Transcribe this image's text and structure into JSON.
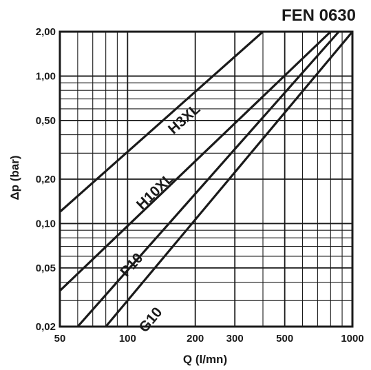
{
  "chart_data": {
    "type": "line",
    "title": "FEN 0630",
    "xlabel": "Q (l/mn)",
    "ylabel": "Δp (bar)",
    "x_scale": "log",
    "y_scale": "log",
    "xlim": [
      50,
      1000
    ],
    "ylim": [
      0.02,
      2.0
    ],
    "x_ticks": [
      50,
      100,
      200,
      300,
      500,
      1000
    ],
    "x_tick_labels": [
      "50",
      "100",
      "200",
      "300",
      "500",
      "1000"
    ],
    "y_ticks": [
      0.02,
      0.05,
      0.1,
      0.2,
      0.5,
      1.0,
      2.0
    ],
    "y_tick_labels": [
      "0,02",
      "0,05",
      "0,10",
      "0,20",
      "0,50",
      "1,00",
      "2,00"
    ],
    "grid": true,
    "legend": "none",
    "series": [
      {
        "name": "H3XL",
        "x": [
          50,
          400
        ],
        "y": [
          0.12,
          2.0
        ]
      },
      {
        "name": "H10XL",
        "x": [
          50,
          800
        ],
        "y": [
          0.035,
          2.0
        ]
      },
      {
        "name": "P10",
        "x": [
          60,
          870
        ],
        "y": [
          0.02,
          2.0
        ]
      },
      {
        "name": "G10",
        "x": [
          80,
          1000
        ],
        "y": [
          0.02,
          2.0
        ]
      }
    ],
    "annotations": [
      {
        "text": "H3XL",
        "series": "H3XL"
      },
      {
        "text": "H10XL",
        "series": "H10XL"
      },
      {
        "text": "P10",
        "series": "P10"
      },
      {
        "text": "G10",
        "series": "G10"
      }
    ]
  }
}
